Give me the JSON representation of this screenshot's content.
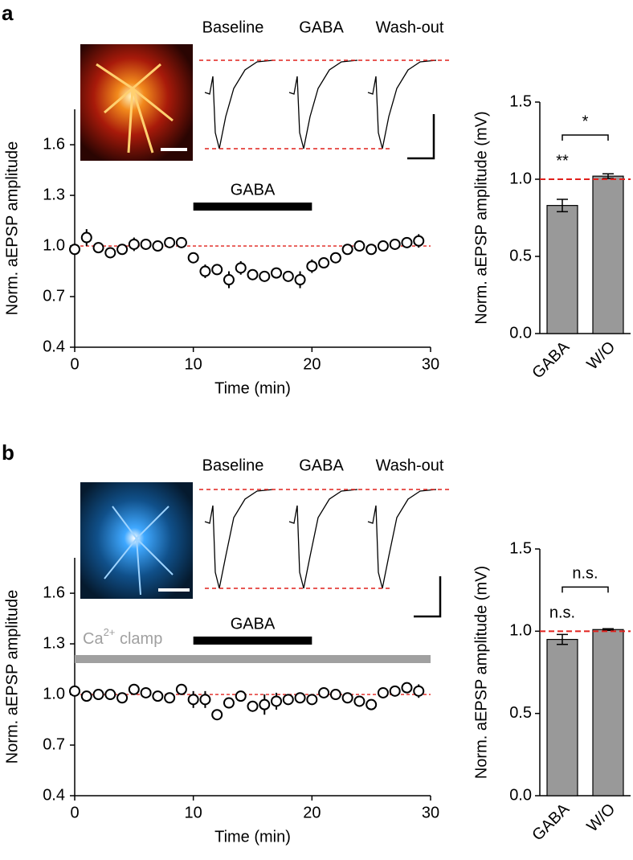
{
  "chart_data": [
    {
      "type": "scatter",
      "panel": "a",
      "trace_labels": [
        "Baseline",
        "GABA",
        "Wash-out"
      ],
      "x_label": "Time (min)",
      "y_label": "Norm. aEPSP amplitude",
      "x": [
        0,
        1,
        2,
        3,
        4,
        5,
        6,
        7,
        8,
        9,
        10,
        11,
        12,
        13,
        14,
        15,
        16,
        17,
        18,
        19,
        20,
        21,
        22,
        23,
        24,
        25,
        26,
        27,
        28,
        29
      ],
      "values": [
        0.98,
        1.05,
        0.99,
        0.96,
        0.98,
        1.01,
        1.01,
        1.0,
        1.02,
        1.02,
        0.93,
        0.85,
        0.86,
        0.8,
        0.87,
        0.83,
        0.82,
        0.84,
        0.82,
        0.8,
        0.88,
        0.9,
        0.93,
        0.98,
        1.0,
        0.98,
        1.0,
        1.01,
        1.02,
        1.03
      ],
      "errors": [
        0.02,
        0.05,
        0.02,
        0.02,
        0.02,
        0.04,
        0.03,
        0.02,
        0.02,
        0.02,
        0.02,
        0.04,
        0.03,
        0.05,
        0.04,
        0.03,
        0.03,
        0.03,
        0.03,
        0.05,
        0.04,
        0.03,
        0.03,
        0.02,
        0.02,
        0.02,
        0.02,
        0.02,
        0.03,
        0.04
      ],
      "treatments": [
        {
          "label": "GABA",
          "start": 10,
          "end": 20,
          "color": "#000000"
        }
      ],
      "reference_line": 1.0,
      "reference_color": "#e0201c",
      "xlim": [
        0,
        30
      ],
      "xticks": [
        0,
        10,
        20,
        30
      ],
      "ylim": [
        0.4,
        1.81
      ],
      "yticks": [
        0.4,
        0.7,
        {
          "value": 1.0,
          "label": "1.0"
        },
        1.3,
        1.6
      ]
    },
    {
      "type": "bar",
      "y_label": "Norm. aEPSP amplitude (mV)",
      "categories": [
        "GABA",
        "W/O"
      ],
      "values": [
        0.83,
        1.02
      ],
      "errors": [
        0.04,
        0.015
      ],
      "color": "#999999",
      "reference_line": 1.0,
      "reference_color": "#e0201c",
      "annotations": [
        {
          "text": "**",
          "over": 0
        },
        {
          "text": "*",
          "from": 0,
          "to": 1
        }
      ],
      "ylim": [
        0,
        1.5
      ],
      "yticks": [
        {
          "value": 0,
          "label": "0.0"
        },
        0.5,
        {
          "value": 1.0,
          "label": "1.0"
        },
        1.5
      ]
    },
    {
      "type": "scatter",
      "panel": "b",
      "trace_labels": [
        "Baseline",
        "GABA",
        "Wash-out"
      ],
      "x_label": "Time (min)",
      "y_label": "Norm. aEPSP amplitude",
      "x": [
        0,
        1,
        2,
        3,
        4,
        5,
        6,
        7,
        8,
        9,
        10,
        11,
        12,
        13,
        14,
        15,
        16,
        17,
        18,
        19,
        20,
        21,
        22,
        23,
        24,
        25,
        26,
        27,
        28,
        29
      ],
      "values": [
        1.02,
        0.99,
        1.0,
        1.0,
        0.98,
        1.03,
        1.01,
        0.99,
        0.98,
        1.03,
        0.97,
        0.97,
        0.88,
        0.95,
        0.99,
        0.93,
        0.94,
        0.96,
        0.97,
        0.98,
        0.97,
        1.01,
        1.0,
        0.98,
        0.96,
        0.94,
        1.01,
        1.02,
        1.04,
        1.02
      ],
      "errors": [
        0.02,
        0.02,
        0.02,
        0.02,
        0.02,
        0.02,
        0.02,
        0.02,
        0.02,
        0.02,
        0.05,
        0.05,
        0.02,
        0.03,
        0.02,
        0.03,
        0.06,
        0.05,
        0.03,
        0.02,
        0.02,
        0.02,
        0.02,
        0.02,
        0.02,
        0.02,
        0.02,
        0.02,
        0.02,
        0.04
      ],
      "treatments": [
        {
          "label": "GABA",
          "start": 10,
          "end": 20,
          "color": "#000000"
        },
        {
          "label": {
            "text": "Ca",
            "sup": "2+",
            "tail": " clamp"
          },
          "start": 0,
          "end": 30,
          "color": "#a0a0a0"
        }
      ],
      "reference_line": 1.0,
      "reference_color": "#e0201c",
      "xlim": [
        0,
        30
      ],
      "xticks": [
        0,
        10,
        20,
        30
      ],
      "ylim": [
        0.4,
        1.81
      ],
      "yticks": [
        0.4,
        0.7,
        {
          "value": 1.0,
          "label": "1.0"
        },
        1.3,
        1.6
      ]
    },
    {
      "type": "bar",
      "y_label": "Norm. aEPSP amplitude (mV)",
      "categories": [
        "GABA",
        "W/O"
      ],
      "values": [
        0.95,
        1.01
      ],
      "errors": [
        0.03,
        0.005
      ],
      "color": "#999999",
      "reference_line": 1.0,
      "reference_color": "#e0201c",
      "annotations": [
        {
          "text": "n.s.",
          "over": 0
        },
        {
          "text": "n.s.",
          "from": 0,
          "to": 1
        }
      ],
      "ylim": [
        0,
        1.5
      ],
      "yticks": [
        {
          "value": 0,
          "label": "0.0"
        },
        0.5,
        {
          "value": 1.0,
          "label": "1.0"
        },
        1.5
      ]
    }
  ]
}
